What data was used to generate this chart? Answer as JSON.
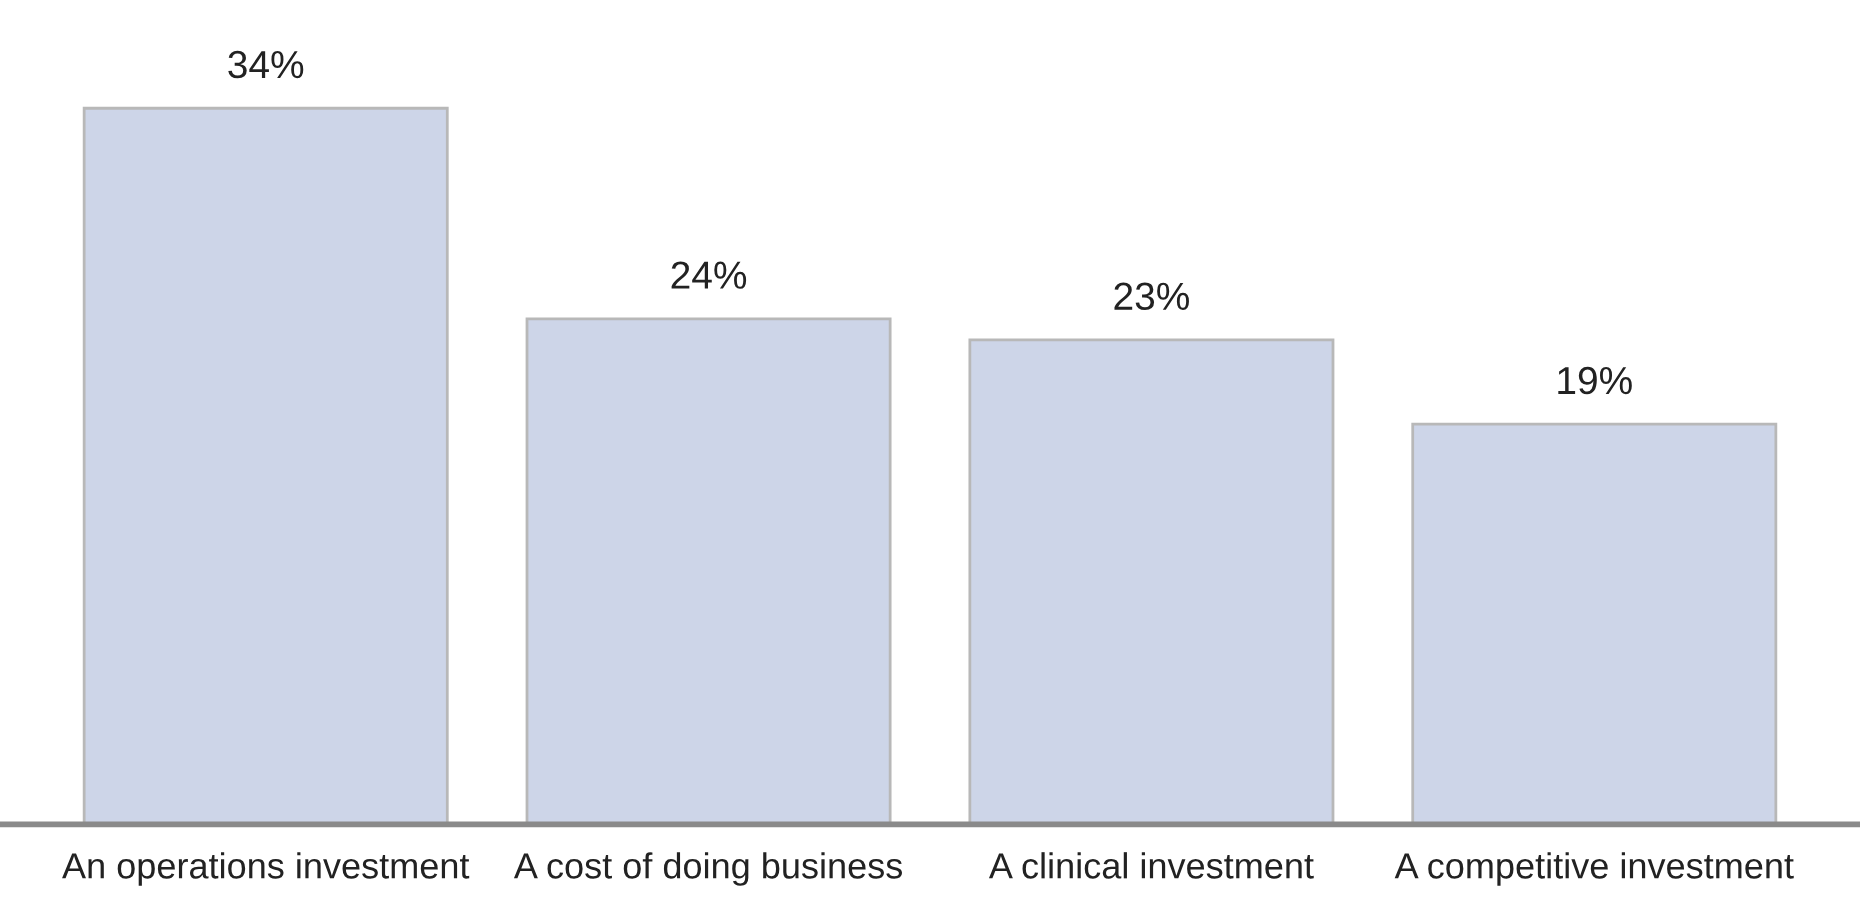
{
  "chart_data": {
    "type": "bar",
    "categories": [
      "An operations investment",
      "A cost of doing business",
      "A clinical investment",
      "A competitive investment"
    ],
    "values": [
      34,
      24,
      23,
      19
    ],
    "value_labels": [
      "34%",
      "24%",
      "23%",
      "19%"
    ],
    "color": "#cdd5e8",
    "grid": false
  }
}
